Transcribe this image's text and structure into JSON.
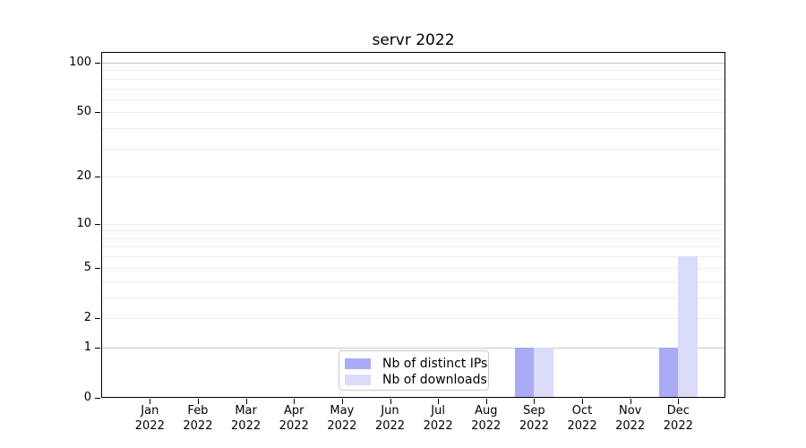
{
  "title": "servr 2022",
  "legend": {
    "items": [
      {
        "label": "Nb of distinct IPs",
        "color": "#aaaaf7"
      },
      {
        "label": "Nb of downloads",
        "color": "#dbdbf9"
      }
    ]
  },
  "chart_data": {
    "type": "bar",
    "title": "servr 2022",
    "categories": [
      "Jan",
      "Feb",
      "Mar",
      "Apr",
      "May",
      "Jun",
      "Jul",
      "Aug",
      "Sep",
      "Oct",
      "Nov",
      "Dec"
    ],
    "year_label": "2022",
    "series": [
      {
        "name": "Nb of distinct IPs",
        "color": "#aaaaf7",
        "values": [
          0,
          0,
          0,
          0,
          0,
          0,
          0,
          0,
          1,
          0,
          0,
          1
        ]
      },
      {
        "name": "Nb of downloads",
        "color": "#dbdbf9",
        "values": [
          0,
          0,
          0,
          0,
          0,
          0,
          0,
          0,
          1,
          0,
          0,
          6
        ]
      }
    ],
    "y_scale": "log1p",
    "ylim": [
      0,
      100
    ],
    "y_ticks": [
      0,
      1,
      2,
      5,
      10,
      20,
      50,
      100
    ],
    "xlabel": "",
    "ylabel": "",
    "grid": {
      "minor_values": [
        2,
        3,
        4,
        5,
        6,
        7,
        8,
        9,
        10,
        20,
        30,
        40,
        50,
        60,
        70,
        80,
        90
      ],
      "major_values": [
        1,
        100
      ],
      "minor_color": "#ececec",
      "major_color": "#c6c6c6"
    },
    "legend_position": "inside-bottom-center",
    "axis_color": "#000000"
  }
}
